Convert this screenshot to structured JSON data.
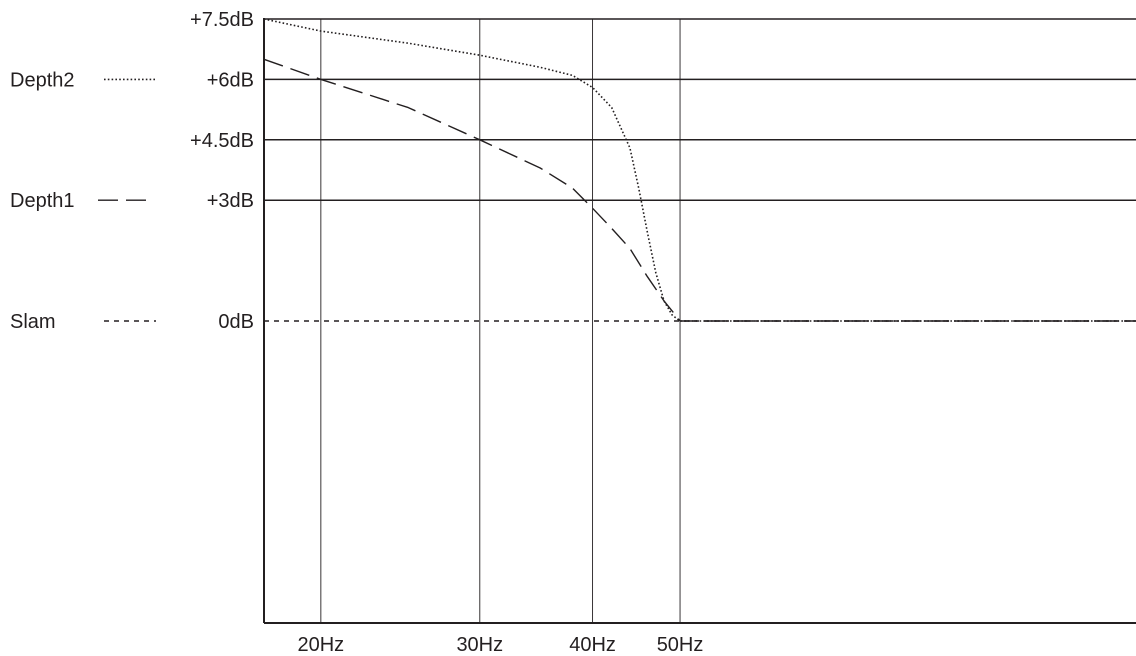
{
  "chart_data": {
    "type": "line",
    "title": "",
    "xlabel": "",
    "ylabel": "",
    "x_scale": "log",
    "xlim": [
      17.3,
      160
    ],
    "ylim": [
      -7.5,
      7.5
    ],
    "grid": true,
    "legend_position": "left",
    "x_ticks": [
      {
        "value": 20,
        "label": "20Hz"
      },
      {
        "value": 30,
        "label": "30Hz"
      },
      {
        "value": 40,
        "label": "40Hz"
      },
      {
        "value": 50,
        "label": "50Hz"
      }
    ],
    "y_ticks": [
      {
        "value": 7.5,
        "label": "+7.5dB"
      },
      {
        "value": 6,
        "label": "+6dB"
      },
      {
        "value": 4.5,
        "label": "+4.5dB"
      },
      {
        "value": 3,
        "label": "+3dB"
      },
      {
        "value": 0,
        "label": "0dB"
      }
    ],
    "series": [
      {
        "name": "Depth2",
        "style": "dotted",
        "x": [
          17.3,
          20,
          25,
          30,
          35,
          38,
          40,
          42,
          44,
          45,
          46,
          47,
          48,
          49,
          50,
          52,
          60,
          160
        ],
        "y": [
          7.5,
          7.2,
          6.9,
          6.6,
          6.3,
          6.1,
          5.8,
          5.3,
          4.3,
          3.3,
          2.2,
          1.2,
          0.5,
          0.15,
          0,
          0,
          0,
          0
        ]
      },
      {
        "name": "Depth1",
        "style": "dashed",
        "x": [
          17.3,
          20,
          25,
          30,
          35,
          38,
          40,
          42,
          44,
          46,
          48,
          49,
          50,
          52,
          60,
          160
        ],
        "y": [
          6.5,
          6.0,
          5.3,
          4.5,
          3.8,
          3.3,
          2.8,
          2.3,
          1.8,
          1.1,
          0.5,
          0.25,
          0,
          0,
          0,
          0
        ]
      },
      {
        "name": "Slam",
        "style": "short-dash",
        "x": [
          17.3,
          160
        ],
        "y": [
          0,
          0
        ]
      }
    ]
  }
}
